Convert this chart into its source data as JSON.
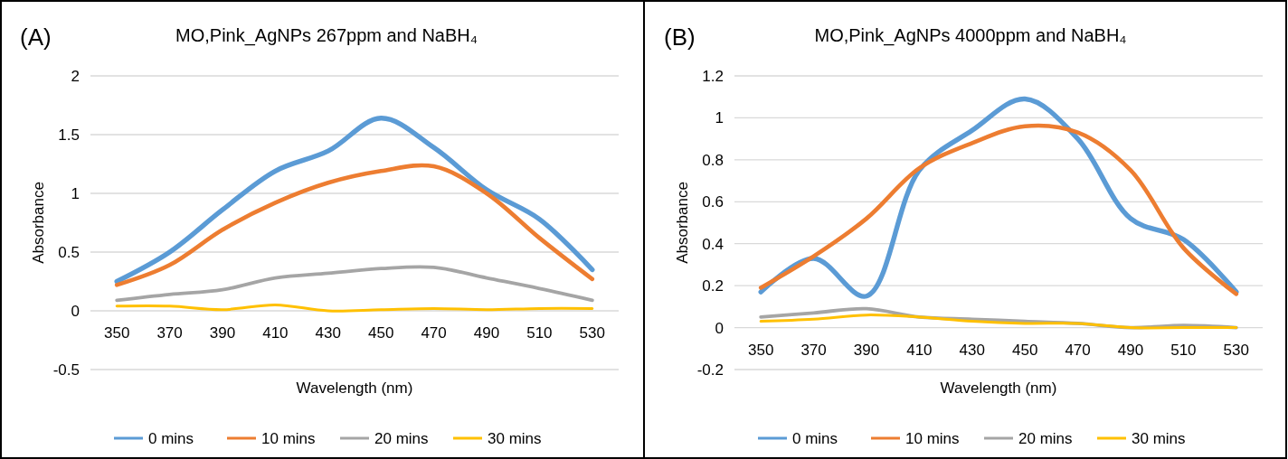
{
  "chart_data": [
    {
      "type": "line",
      "title": "MO,Pink_AgNPs 267ppm and NaBH₄",
      "xlabel": "Wavelength (nm)",
      "ylabel": "Absorbance",
      "annotations": [
        "(A)"
      ],
      "categories": [
        "350",
        "370",
        "390",
        "410",
        "430",
        "450",
        "470",
        "490",
        "510",
        "530"
      ],
      "ylim": [
        -0.5,
        2
      ],
      "yticks": [
        -0.5,
        0,
        0.5,
        1,
        1.5,
        2
      ],
      "grid": "y",
      "legend": "bottom",
      "series": [
        {
          "name": "0 mins",
          "color": "#5b9bd5",
          "values": [
            0.25,
            0.5,
            0.86,
            1.19,
            1.36,
            1.64,
            1.39,
            1.03,
            0.78,
            0.35
          ]
        },
        {
          "name": "10 mins",
          "color": "#ed7d31",
          "values": [
            0.22,
            0.39,
            0.69,
            0.92,
            1.09,
            1.19,
            1.23,
            1.0,
            0.62,
            0.27
          ]
        },
        {
          "name": "20 mins",
          "color": "#a5a5a5",
          "values": [
            0.09,
            0.14,
            0.18,
            0.28,
            0.32,
            0.36,
            0.37,
            0.28,
            0.19,
            0.09
          ]
        },
        {
          "name": "30 mins",
          "color": "#ffc000",
          "values": [
            0.04,
            0.04,
            0.01,
            0.05,
            0.0,
            0.01,
            0.02,
            0.01,
            0.02,
            0.02
          ]
        }
      ]
    },
    {
      "type": "line",
      "title": "MO,Pink_AgNPs 4000ppm and NaBH₄",
      "xlabel": "Wavelength (nm)",
      "ylabel": "Absorbance",
      "annotations": [
        "(B)"
      ],
      "categories": [
        "350",
        "370",
        "390",
        "410",
        "430",
        "450",
        "470",
        "490",
        "510",
        "530"
      ],
      "ylim": [
        -0.2,
        1.2
      ],
      "yticks": [
        -0.2,
        0,
        0.2,
        0.4,
        0.6,
        0.8,
        1,
        1.2
      ],
      "grid": "y",
      "legend": "bottom",
      "series": [
        {
          "name": "0 mins",
          "color": "#5b9bd5",
          "values": [
            0.17,
            0.33,
            0.15,
            0.75,
            0.94,
            1.09,
            0.9,
            0.52,
            0.42,
            0.17
          ]
        },
        {
          "name": "10 mins",
          "color": "#ed7d31",
          "values": [
            0.19,
            0.34,
            0.52,
            0.76,
            0.88,
            0.96,
            0.93,
            0.75,
            0.38,
            0.16
          ]
        },
        {
          "name": "20 mins",
          "color": "#a5a5a5",
          "values": [
            0.05,
            0.07,
            0.09,
            0.05,
            0.04,
            0.03,
            0.02,
            0.0,
            0.01,
            0.0
          ]
        },
        {
          "name": "30 mins",
          "color": "#ffc000",
          "values": [
            0.03,
            0.04,
            0.06,
            0.05,
            0.03,
            0.02,
            0.02,
            0.0,
            0.0,
            0.0
          ]
        }
      ]
    }
  ]
}
